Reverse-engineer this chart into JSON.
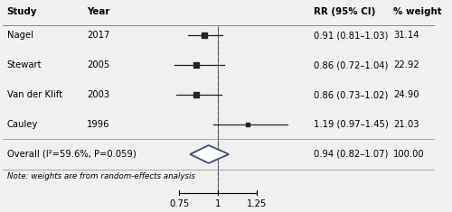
{
  "studies": [
    "Nagel",
    "Stewart",
    "Van der Klift",
    "Cauley"
  ],
  "years": [
    "2017",
    "2005",
    "2003",
    "1996"
  ],
  "rr": [
    0.91,
    0.86,
    0.86,
    1.19
  ],
  "ci_low": [
    0.81,
    0.72,
    0.73,
    0.97
  ],
  "ci_high": [
    1.03,
    1.04,
    1.02,
    1.45
  ],
  "weights": [
    31.14,
    22.92,
    24.9,
    21.03
  ],
  "rr_labels": [
    "0.91 (0.81–1.03)",
    "0.86 (0.72–1.04)",
    "0.86 (0.73–1.02)",
    "1.19 (0.97–1.45)"
  ],
  "weight_labels": [
    "31.14",
    "22.92",
    "24.90",
    "21.03"
  ],
  "overall_rr": 0.94,
  "overall_ci_low": 0.82,
  "overall_ci_high": 1.07,
  "overall_label": "0.94 (0.82–1.07)",
  "overall_weight": "100.00",
  "overall_text": "Overall (I²=59.6%, P=0.059)",
  "note_text": "Note: weights are from random-effects analysis",
  "col_study": "Study",
  "col_year": "Year",
  "col_rr": "RR (95% CI)",
  "col_weight": "% weight",
  "xticks": [
    0.75,
    1.0,
    1.25
  ],
  "ref_line": 1.0,
  "diamond_color": "#3d4a7a",
  "ci_line_color": "#222222",
  "square_color": "#222222",
  "background_color": "#f0f0f0",
  "sep_line_color": "#888888"
}
